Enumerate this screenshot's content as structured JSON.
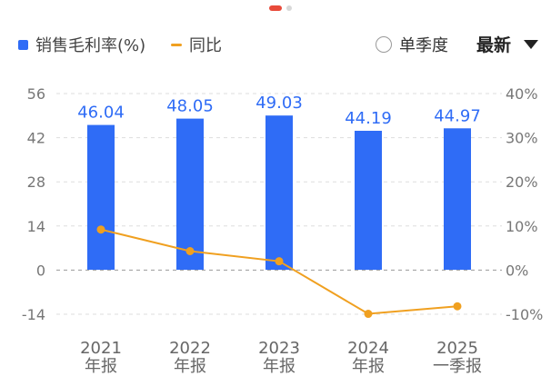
{
  "legend": {
    "bar_label": "销售毛利率(%)",
    "line_label": "同比"
  },
  "controls": {
    "toggle_label": "单季度",
    "period_label": "最新"
  },
  "colors": {
    "bar": "#2f6cf6",
    "line": "#f0a020",
    "grid": "#dddddd"
  },
  "chart_data": {
    "type": "bar",
    "categories": [
      [
        "2021",
        "年报"
      ],
      [
        "2022",
        "年报"
      ],
      [
        "2023",
        "年报"
      ],
      [
        "2024",
        "年报"
      ],
      [
        "2025",
        "一季报"
      ]
    ],
    "series": [
      {
        "name": "销售毛利率(%)",
        "type": "bar",
        "axis": "left",
        "values": [
          46.04,
          48.05,
          49.03,
          44.19,
          44.97
        ],
        "labels": [
          "46.04",
          "48.05",
          "49.03",
          "44.19",
          "44.97"
        ]
      },
      {
        "name": "同比",
        "type": "line",
        "axis": "right",
        "values": [
          9.2,
          4.3,
          2.0,
          -9.9,
          -8.2
        ]
      }
    ],
    "y_left": {
      "ticks": [
        56,
        42,
        28,
        14,
        0,
        -14
      ],
      "range": [
        -14,
        56
      ]
    },
    "y_right": {
      "ticks": [
        "40%",
        "30%",
        "20%",
        "10%",
        "0%",
        "-10%"
      ],
      "range": [
        -10,
        40
      ]
    },
    "grid": true
  }
}
